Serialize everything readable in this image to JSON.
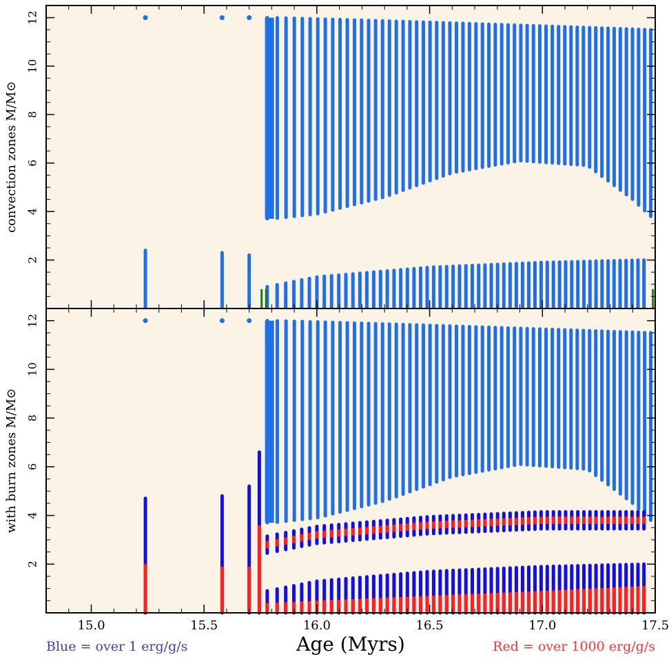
{
  "colors": {
    "background": "#fbf3e5",
    "blue": "#1f6fe8",
    "navy": "#1010e0",
    "red": "#ff2020",
    "green": "#1a7a1a",
    "axis": "#000000",
    "footnote_left": "#4040b0",
    "footnote_right": "#ff3030"
  },
  "footnotes": {
    "left": "Blue = over 1 erg/g/s",
    "right": "Red = over 1000 erg/g/s"
  },
  "chart_data": [
    {
      "type": "scatter",
      "name": "convection",
      "xlabel": "",
      "ylabel": "convection zones M/M⊙",
      "xlim": [
        14.8,
        17.5
      ],
      "ylim": [
        0,
        12.5
      ],
      "xticks": [
        15.0,
        15.5,
        16.0,
        16.5,
        17.0,
        17.5
      ],
      "yticks": [
        2,
        4,
        6,
        8,
        10,
        12
      ],
      "early_bars": [
        {
          "x": 15.24,
          "dot": 12.0,
          "bar": [
            0,
            2.4
          ]
        },
        {
          "x": 15.58,
          "dot": 12.0,
          "bar": [
            0,
            2.3
          ]
        },
        {
          "x": 15.7,
          "dot": 12.0,
          "bar": [
            0,
            2.2
          ]
        }
      ],
      "envelope": {
        "x_start": 15.78,
        "x_end": 17.48,
        "top": [
          12.0,
          11.5
        ],
        "bottom_profile": [
          [
            15.8,
            3.7
          ],
          [
            16.0,
            3.9
          ],
          [
            16.3,
            4.6
          ],
          [
            16.6,
            5.6
          ],
          [
            16.9,
            6.1
          ],
          [
            17.2,
            5.9
          ],
          [
            17.4,
            4.5
          ],
          [
            17.48,
            3.8
          ]
        ]
      },
      "core": {
        "x_start": 15.78,
        "x_end": 17.45,
        "top_profile": [
          [
            15.78,
            0.9
          ],
          [
            16.0,
            1.3
          ],
          [
            16.5,
            1.7
          ],
          [
            17.0,
            1.9
          ],
          [
            17.45,
            2.0
          ]
        ]
      },
      "green_marks": [
        15.755,
        15.775,
        17.49
      ]
    },
    {
      "type": "scatter",
      "name": "burn",
      "xlabel": "Age (Myrs)",
      "ylabel": "with burn zones M/M⊙",
      "xlim": [
        14.8,
        17.5
      ],
      "ylim": [
        0,
        12.5
      ],
      "xticks": [
        15.0,
        15.5,
        16.0,
        16.5,
        17.0,
        17.5
      ],
      "yticks": [
        2,
        4,
        6,
        8,
        10,
        12
      ],
      "early_bars": [
        {
          "x": 15.24,
          "dot": 12.0,
          "blue_top": 4.7,
          "red_top": 2.0
        },
        {
          "x": 15.58,
          "dot": 12.0,
          "blue_top": 4.8,
          "red_top": 1.9
        },
        {
          "x": 15.7,
          "dot": 12.0,
          "blue_top": 5.2,
          "red_top": 1.9
        },
        {
          "x": 15.745,
          "dot": null,
          "blue_top": 6.6,
          "red_top": 3.6
        }
      ],
      "shell_band": {
        "profile": [
          [
            15.78,
            2.8
          ],
          [
            16.0,
            3.2
          ],
          [
            16.5,
            3.6
          ],
          [
            17.0,
            3.8
          ],
          [
            17.45,
            3.8
          ]
        ]
      },
      "envelope": {
        "x_start": 15.78,
        "x_end": 17.48,
        "top": [
          12.0,
          11.5
        ],
        "bottom_profile": [
          [
            15.8,
            3.7
          ],
          [
            16.0,
            3.9
          ],
          [
            16.3,
            4.6
          ],
          [
            16.6,
            5.6
          ],
          [
            16.9,
            6.1
          ],
          [
            17.2,
            5.9
          ],
          [
            17.4,
            4.5
          ],
          [
            17.48,
            3.8
          ]
        ]
      },
      "core": {
        "x_start": 15.78,
        "x_end": 17.45,
        "top_profile": [
          [
            15.78,
            0.9
          ],
          [
            16.0,
            1.3
          ],
          [
            16.5,
            1.7
          ],
          [
            17.0,
            1.9
          ],
          [
            17.45,
            2.0
          ]
        ],
        "red_profile": [
          [
            15.78,
            0.4
          ],
          [
            16.0,
            0.5
          ],
          [
            16.5,
            0.7
          ],
          [
            17.0,
            0.9
          ],
          [
            17.45,
            1.1
          ]
        ]
      }
    }
  ]
}
